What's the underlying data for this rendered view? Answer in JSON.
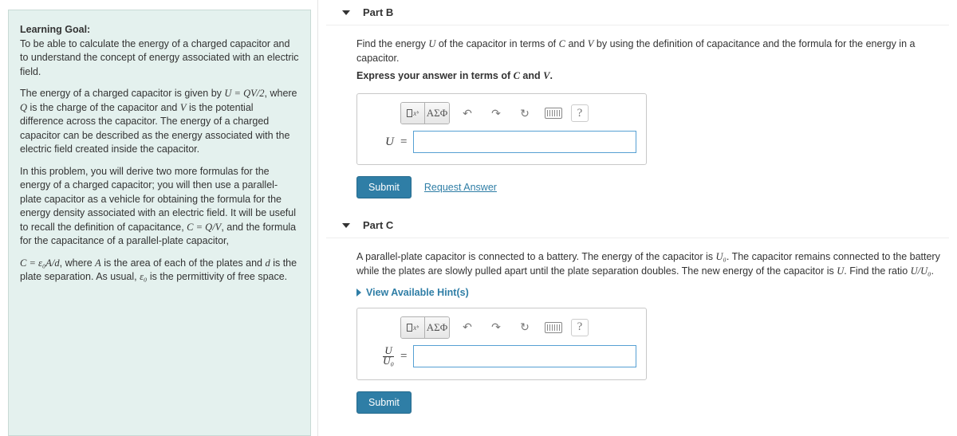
{
  "left": {
    "goal_label": "Learning Goal:",
    "goal_text": "To be able to calculate the energy of a charged capacitor and to understand the concept of energy associated with an electric field.",
    "p2_a": "The energy of a charged capacitor is given by ",
    "p2_f1": "U = QV/2",
    "p2_b": ", where ",
    "p2_v1": "Q",
    "p2_c": " is the charge of the capacitor and ",
    "p2_v2": "V",
    "p2_d": " is the potential difference across the capacitor. The energy of a charged capacitor can be described as the energy associated with the electric field created inside the capacitor.",
    "p3_a": "In this problem, you will derive two more formulas for the energy of a charged capacitor; you will then use a parallel-plate capacitor as a vehicle for obtaining the formula for the energy density associated with an electric field. It will be useful to recall the definition of capacitance, ",
    "p3_f1": "C = Q/V",
    "p3_b": ", and the formula for the capacitance of a parallel-plate capacitor,",
    "p4_f1": "C = ε₀A/d",
    "p4_a": ", where ",
    "p4_v1": "A",
    "p4_b": " is the area of each of the plates and ",
    "p4_v2": "d",
    "p4_c": " is the plate separation. As usual, ",
    "p4_v3": "ε₀",
    "p4_d": " is the permittivity of free space."
  },
  "partB": {
    "header": "Part B",
    "prompt_a": "Find the energy ",
    "prompt_v1": "U",
    "prompt_b": " of the capacitor in terms of ",
    "prompt_v2": "C",
    "prompt_c": " and ",
    "prompt_v3": "V",
    "prompt_d": " by using the definition of capacitance and the formula for the energy in a capacitor.",
    "instr_a": "Express your answer in terms of ",
    "instr_v1": "C",
    "instr_b": " and ",
    "instr_v2": "V",
    "instr_c": ".",
    "lhs": "U",
    "submit": "Submit",
    "request": "Request Answer"
  },
  "partC": {
    "header": "Part C",
    "prompt_a": "A parallel-plate capacitor is connected to a battery. The energy of the capacitor is ",
    "prompt_v1": "U₀",
    "prompt_b": ". The capacitor remains connected to the battery while the plates are slowly pulled apart until the plate separation doubles. The new energy of the capacitor is ",
    "prompt_v2": "U",
    "prompt_c": ". Find the ratio ",
    "prompt_v3": "U/U₀",
    "prompt_d": ".",
    "hint": "View Available Hint(s)",
    "lhs_num": "U",
    "lhs_den": "U₀",
    "submit": "Submit"
  },
  "toolbar": {
    "greek": "ΑΣΦ",
    "undo": "↶",
    "redo": "↷",
    "reset": "↻",
    "help": "?"
  }
}
